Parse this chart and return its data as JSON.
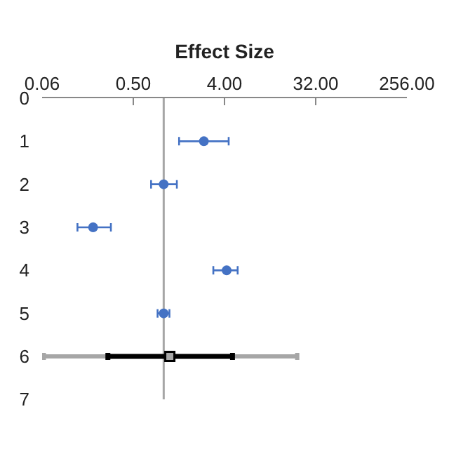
{
  "chart_data": {
    "type": "scatter",
    "xlabel": "Effect Size",
    "orientation": "horizontal",
    "categories": [
      "0",
      "1",
      "2",
      "3",
      "4",
      "5",
      "6",
      "7"
    ],
    "series": [
      {
        "color": "#4472c4",
        "values": [
          null,
          2.5,
          1.0,
          0.2,
          4.2,
          1.0,
          null,
          null
        ],
        "errors": [
          null,
          [
            1.42,
            4.4
          ],
          [
            0.75,
            1.35
          ],
          [
            0.14,
            0.3
          ],
          [
            3.1,
            5.4
          ],
          [
            0.87,
            1.14
          ],
          null,
          null
        ],
        "marker": "circle"
      },
      {
        "color": "#a6a6a6",
        "values": [
          null,
          null,
          null,
          null,
          null,
          null,
          1.15,
          null
        ],
        "errors": [
          null,
          null,
          null,
          null,
          null,
          null,
          [
            0.065,
            21
          ],
          null
        ],
        "marker": "square"
      },
      {
        "color": "#000000",
        "values": [
          null,
          null,
          null,
          null,
          null,
          null,
          1.15,
          null
        ],
        "errors": [
          null,
          null,
          null,
          null,
          null,
          null,
          [
            0.28,
            4.8
          ],
          null
        ],
        "marker": "square"
      }
    ],
    "log": "x",
    "xlim": [
      0.0625,
      256
    ],
    "xticks": [
      {
        "value": 0.0625,
        "label": "0.06"
      },
      {
        "value": 0.5,
        "label": "0.50"
      },
      {
        "value": 4,
        "label": "4.00"
      },
      {
        "value": 32,
        "label": "32.00"
      },
      {
        "value": 256,
        "label": "256.00"
      }
    ],
    "ref_lines": [
      {
        "axis": "x",
        "value": 1,
        "color": "#a6a6a6"
      }
    ],
    "grid": false
  }
}
